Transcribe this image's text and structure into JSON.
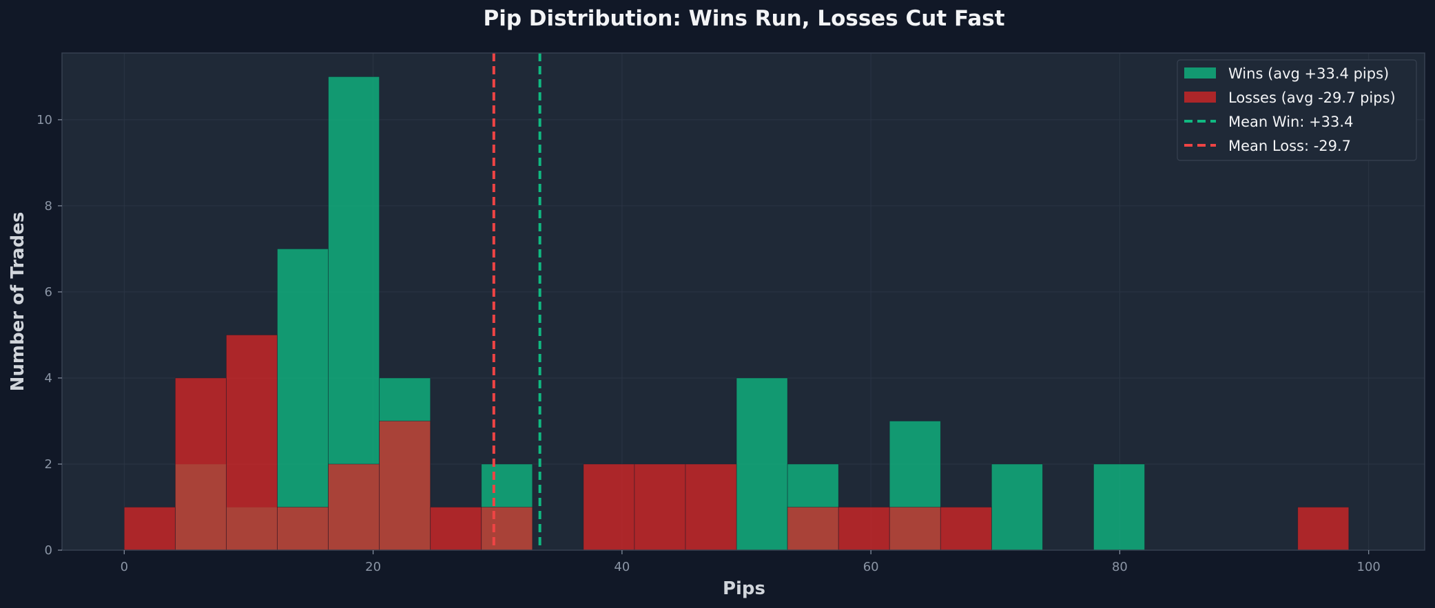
{
  "chart_data": {
    "type": "bar",
    "subtype": "histogram",
    "title": "Pip Distribution: Wins Run, Losses Cut Fast",
    "xlabel": "Pips",
    "ylabel": "Number of Trades",
    "xlim": [
      -5,
      104.5
    ],
    "ylim": [
      0,
      11.55
    ],
    "x_ticks": [
      0,
      20,
      40,
      60,
      80,
      100
    ],
    "y_ticks": [
      0,
      2,
      4,
      6,
      8,
      10
    ],
    "grid": true,
    "legend_position": "top-right",
    "bin_edges": [
      0,
      4.1,
      8.2,
      12.3,
      16.4,
      20.5,
      24.6,
      28.7,
      32.8,
      36.9,
      41.0,
      45.1,
      49.2,
      53.3,
      57.4,
      61.5,
      65.6,
      69.7,
      73.8,
      77.9,
      82.0,
      86.1,
      90.2,
      94.3,
      98.4
    ],
    "series": [
      {
        "name": "Wins (avg +33.4 pips)",
        "color": "#10b981",
        "values": [
          0,
          2,
          1,
          7,
          11,
          4,
          0,
          2,
          0,
          0,
          0,
          0,
          4,
          2,
          0,
          3,
          0,
          2,
          0,
          2,
          0,
          0,
          0,
          0
        ]
      },
      {
        "name": "Losses (avg -29.7 pips)",
        "color": "#dc2626",
        "values": [
          1,
          4,
          5,
          1,
          2,
          3,
          1,
          1,
          0,
          2,
          2,
          2,
          0,
          1,
          1,
          1,
          1,
          0,
          0,
          0,
          0,
          0,
          0,
          1
        ]
      }
    ],
    "reference_lines": [
      {
        "name": "Mean Win: +33.4",
        "x": 33.4,
        "color": "#10b981",
        "style": "dashed"
      },
      {
        "name": "Mean Loss: -29.7",
        "x": 29.7,
        "color": "#ef4444",
        "style": "dashed"
      }
    ],
    "colors": {
      "background": "#111827",
      "plot_background": "#1f2937",
      "grid": "#2b3544",
      "spine": "#374151"
    }
  }
}
